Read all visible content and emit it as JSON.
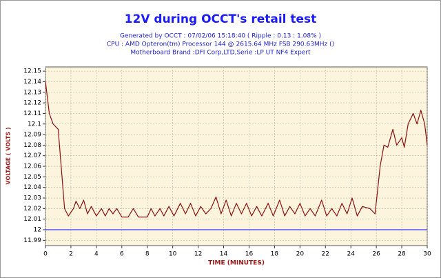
{
  "chart_data": {
    "type": "line",
    "title": "12V during OCCT's retail test",
    "subtitle": [
      "Generated by OCCT : 07/02/06 15:18:40 ( Ripple : 0.13 : 1.08% )",
      "CPU : AMD Opteron(tm) Processor 144    @ 2615.64 MHz FSB 290.63MHz ()",
      "Motherboard Brand :DFI Corp,LTD,Serie :LP UT NF4 Expert"
    ],
    "x_label": "TIME (MINUTES)",
    "y_label": "VOLTAGE ( VOLTS )",
    "x": [
      0,
      0.3,
      0.6,
      1.0,
      1.5,
      1.8,
      2.2,
      2.4,
      2.7,
      3.0,
      3.3,
      3.6,
      4.0,
      4.4,
      4.7,
      5.0,
      5.3,
      5.6,
      6.0,
      6.5,
      6.9,
      7.3,
      8.0,
      8.3,
      8.6,
      9.0,
      9.3,
      9.7,
      10.1,
      10.6,
      11.0,
      11.4,
      11.8,
      12.2,
      12.6,
      13.0,
      13.4,
      13.8,
      14.2,
      14.6,
      15.0,
      15.4,
      15.8,
      16.2,
      16.6,
      17.0,
      17.5,
      17.9,
      18.4,
      18.8,
      19.2,
      19.6,
      20.0,
      20.4,
      20.8,
      21.2,
      21.7,
      22.1,
      22.5,
      22.9,
      23.3,
      23.7,
      24.1,
      24.5,
      24.9,
      25.5,
      25.9,
      26.3,
      26.6,
      26.9,
      27.3,
      27.6,
      28.0,
      28.2,
      28.5,
      28.9,
      29.2,
      29.5,
      29.8,
      30
    ],
    "series": [
      {
        "color": "#8b1010",
        "values": [
          12.14,
          12.11,
          12.1,
          12.095,
          12.02,
          12.013,
          12.02,
          12.027,
          12.02,
          12.028,
          12.015,
          12.022,
          12.013,
          12.02,
          12.013,
          12.02,
          12.015,
          12.02,
          12.012,
          12.012,
          12.02,
          12.012,
          12.012,
          12.02,
          12.013,
          12.02,
          12.013,
          12.022,
          12.013,
          12.025,
          12.015,
          12.025,
          12.013,
          12.022,
          12.015,
          12.02,
          12.031,
          12.015,
          12.028,
          12.013,
          12.025,
          12.015,
          12.025,
          12.013,
          12.022,
          12.013,
          12.025,
          12.013,
          12.028,
          12.013,
          12.022,
          12.015,
          12.025,
          12.013,
          12.02,
          12.013,
          12.028,
          12.013,
          12.02,
          12.013,
          12.025,
          12.015,
          12.03,
          12.013,
          12.022,
          12.02,
          12.015,
          12.06,
          12.08,
          12.078,
          12.095,
          12.08,
          12.087,
          12.078,
          12.1,
          12.11,
          12.1,
          12.113,
          12.1,
          12.08
        ]
      }
    ],
    "reference_line": {
      "value": 12,
      "color": "#3333ff"
    },
    "xlim": [
      0,
      30
    ],
    "xticks": [
      0,
      2,
      4,
      6,
      8,
      10,
      12,
      14,
      16,
      18,
      20,
      22,
      24,
      26,
      28,
      30
    ],
    "ylim": [
      11.985,
      12.154
    ],
    "yticks": [
      11.99,
      12,
      12.01,
      12.02,
      12.03,
      12.04,
      12.05,
      12.06,
      12.07,
      12.08,
      12.09,
      12.1,
      12.11,
      12.12,
      12.13,
      12.14,
      12.15
    ],
    "grid": true
  }
}
